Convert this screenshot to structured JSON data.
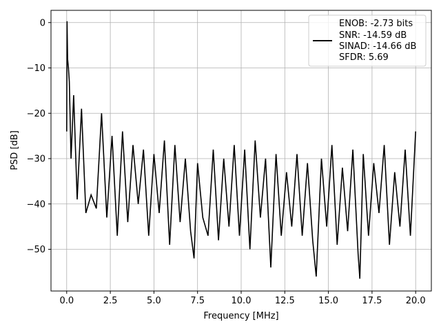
{
  "chart_data": {
    "type": "line",
    "title": "",
    "xlabel": "Frequency [MHz]",
    "ylabel": "PSD [dB]",
    "xlim": [
      -0.9,
      20.9
    ],
    "ylim": [
      -59.2,
      2.7
    ],
    "xticks": [
      0.0,
      2.5,
      5.0,
      7.5,
      10.0,
      12.5,
      15.0,
      17.5,
      20.0
    ],
    "xtick_labels": [
      "0.0",
      "2.5",
      "5.0",
      "7.5",
      "10.0",
      "12.5",
      "15.0",
      "17.5",
      "20.0"
    ],
    "yticks": [
      0,
      -10,
      -20,
      -30,
      -40,
      -50
    ],
    "ytick_labels": [
      "0",
      "−10",
      "−20",
      "−30",
      "−40",
      "−50"
    ],
    "grid": true,
    "line_color": "#000000",
    "legend_position": "upper right",
    "legend_lines": [
      "ENOB: -2.73 bits",
      "SNR: -14.59 dB",
      "SINAD: -14.66 dB",
      "SFDR: 5.69"
    ],
    "series": [
      {
        "x": [
          0.0,
          0.02,
          0.05,
          0.1,
          0.15,
          0.25,
          0.4,
          0.6,
          0.85,
          1.1,
          1.4,
          1.7,
          2.0,
          2.3,
          2.6,
          2.9,
          3.2,
          3.5,
          3.8,
          4.1,
          4.4,
          4.7,
          5.0,
          5.3,
          5.6,
          5.9,
          6.2,
          6.5,
          6.8,
          7.1,
          7.3,
          7.5,
          7.8,
          8.1,
          8.4,
          8.7,
          9.0,
          9.3,
          9.6,
          9.9,
          10.2,
          10.5,
          10.8,
          11.1,
          11.4,
          11.7,
          12.0,
          12.3,
          12.6,
          12.9,
          13.2,
          13.5,
          13.8,
          14.1,
          14.3,
          14.6,
          14.9,
          15.2,
          15.5,
          15.8,
          16.1,
          16.4,
          16.7,
          16.8,
          17.0,
          17.3,
          17.6,
          17.9,
          18.2,
          18.5,
          18.8,
          19.1,
          19.4,
          19.7,
          20.0
        ],
        "y": [
          -24,
          0.3,
          -8,
          -10,
          -13,
          -30,
          -16,
          -39,
          -19,
          -42,
          -38,
          -41,
          -20,
          -43,
          -25,
          -47,
          -24,
          -44,
          -27,
          -40,
          -28,
          -47,
          -29,
          -42,
          -26,
          -49,
          -27,
          -44,
          -30,
          -46,
          -52,
          -31,
          -43,
          -47,
          -28,
          -48,
          -30,
          -45,
          -27,
          -47,
          -28,
          -50,
          -26,
          -43,
          -30,
          -54,
          -29,
          -47,
          -33,
          -45,
          -29,
          -47,
          -31,
          -48,
          -56,
          -30,
          -45,
          -27,
          -49,
          -32,
          -46,
          -28,
          -51,
          -56.5,
          -29,
          -47,
          -31,
          -42,
          -27,
          -49,
          -33,
          -45,
          -28,
          -47,
          -24
        ]
      }
    ]
  }
}
